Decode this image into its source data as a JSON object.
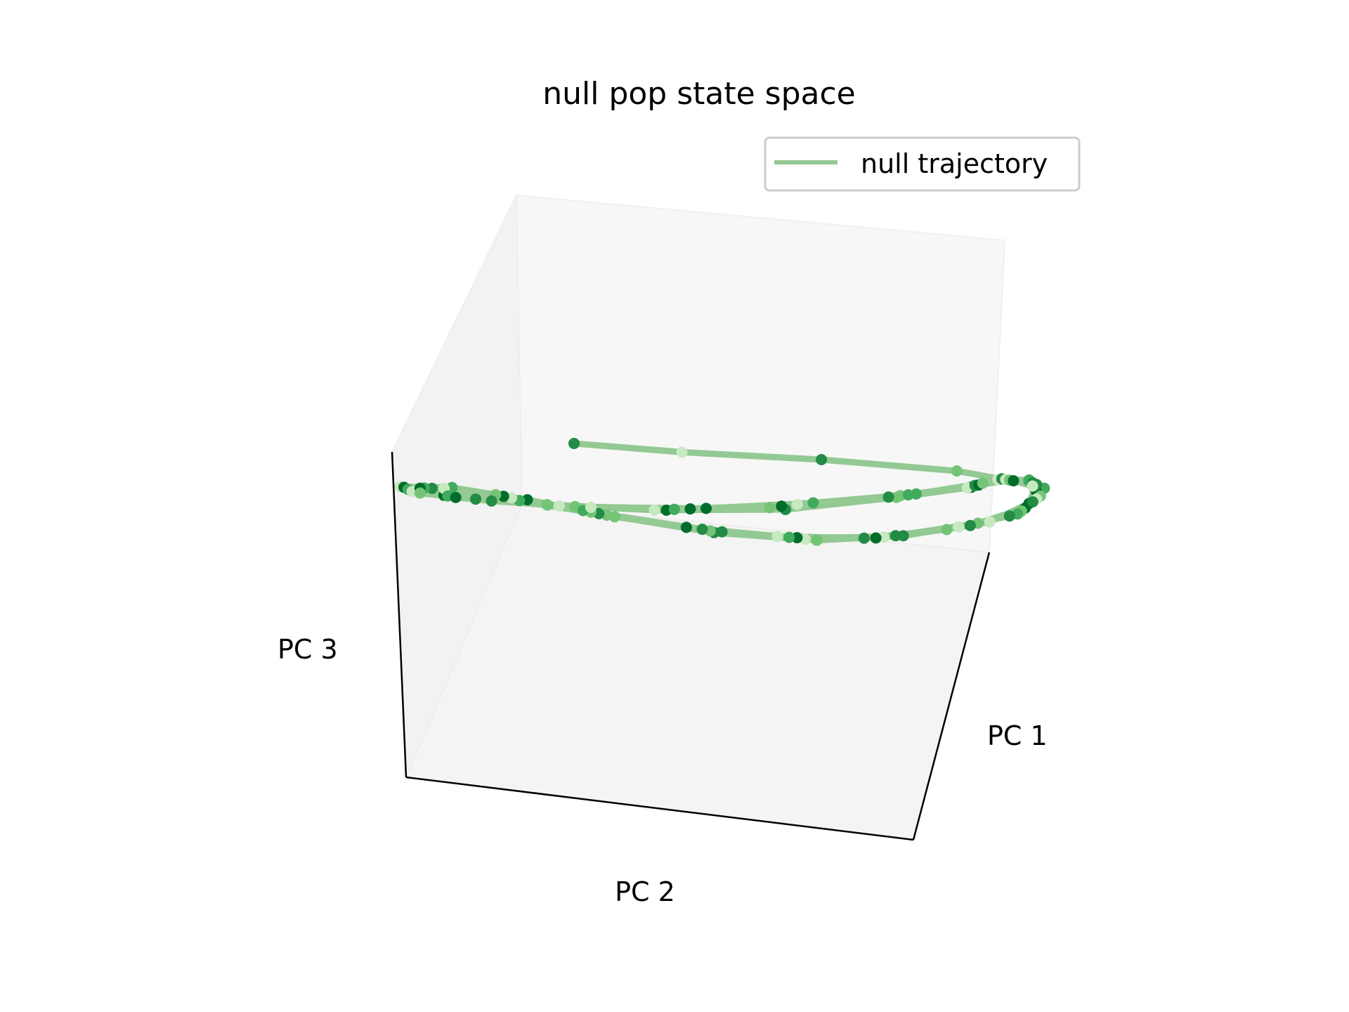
{
  "chart_data": {
    "type": "scatter",
    "projection": "3d",
    "title": "null pop state space",
    "xlabel": "PC 1",
    "ylabel": "PC 2",
    "zlabel": "PC 3",
    "legend": {
      "placement": "top-right",
      "entries": [
        {
          "label": "null trajectory",
          "color": "#93c993"
        }
      ]
    },
    "grid": false,
    "ticks_visible": false,
    "line_color": "#93c993",
    "marker_colormap": "Greens",
    "marker_colors": [
      "#c7e9c0",
      "#74c476",
      "#41ab5d",
      "#238b45",
      "#006d2c"
    ],
    "trajectory": [
      {
        "x": 1.0,
        "y": 5.0,
        "z": 2.0,
        "c": 0.61
      },
      {
        "x": 2.0,
        "y": 3.3,
        "z": 2.1,
        "c": 0.08
      },
      {
        "x": 3.5,
        "y": 1.3,
        "z": 2.3,
        "c": 0.62
      },
      {
        "x": 5.0,
        "y": -0.6,
        "z": 2.1,
        "c": 0.28
      },
      {
        "x": 5.9,
        "y": -1.7,
        "z": 1.3,
        "c": 0.53
      },
      {
        "x": 5.6,
        "y": -1.8,
        "z": 0.0,
        "c": 0.9
      },
      {
        "x": 4.8,
        "y": -1.6,
        "z": -1.3,
        "c": 0.12
      },
      {
        "x": 3.3,
        "y": -0.9,
        "z": -2.3,
        "c": 0.76
      },
      {
        "x": 1.8,
        "y": -0.2,
        "z": -2.5,
        "c": 0.35
      },
      {
        "x": 0.3,
        "y": 0.9,
        "z": -2.0,
        "c": 0.67
      },
      {
        "x": -1.0,
        "y": 2.3,
        "z": -1.0,
        "c": 0.22
      },
      {
        "x": -2.0,
        "y": 3.3,
        "z": 0.0,
        "c": 0.85
      },
      {
        "x": -3.0,
        "y": 4.2,
        "z": 0.8,
        "c": 0.45
      },
      {
        "x": -3.5,
        "y": 5.0,
        "z": 0.5,
        "c": 0.15
      },
      {
        "x": -3.0,
        "y": 4.4,
        "z": 0.0,
        "c": 0.97
      },
      {
        "x": -1.8,
        "y": 3.0,
        "z": -0.3,
        "c": 0.58
      },
      {
        "x": -0.4,
        "y": 1.7,
        "z": -0.4,
        "c": 0.04
      },
      {
        "x": 1.2,
        "y": 0.0,
        "z": 0.2,
        "c": 0.7
      },
      {
        "x": 2.7,
        "y": -1.3,
        "z": 1.5,
        "c": 0.3
      },
      {
        "x": 4.0,
        "y": -1.9,
        "z": 2.2,
        "c": 0.88
      },
      {
        "x": 4.8,
        "y": -1.8,
        "z": 2.4,
        "c": 0.18
      },
      {
        "x": 5.5,
        "y": -1.9,
        "z": 2.1,
        "c": 0.5
      },
      {
        "x": 6.0,
        "y": -1.8,
        "z": 1.1,
        "c": 0.4
      },
      {
        "x": 5.4,
        "y": -1.9,
        "z": -0.2,
        "c": 0.93
      },
      {
        "x": 4.6,
        "y": -1.5,
        "z": -1.4,
        "c": 0.26
      },
      {
        "x": 3.1,
        "y": -0.9,
        "z": -2.2,
        "c": 0.64
      },
      {
        "x": 1.6,
        "y": -0.1,
        "z": -2.4,
        "c": 0.1
      },
      {
        "x": 0.4,
        "y": 0.8,
        "z": -1.9,
        "c": 0.78
      },
      {
        "x": -0.9,
        "y": 2.2,
        "z": -1.1,
        "c": 0.33
      },
      {
        "x": -2.1,
        "y": 3.4,
        "z": -0.1,
        "c": 0.55
      },
      {
        "x": -3.1,
        "y": 4.3,
        "z": 0.7,
        "c": 0.07
      },
      {
        "x": -3.4,
        "y": 5.0,
        "z": 0.4,
        "c": 0.81
      },
      {
        "x": -2.9,
        "y": 4.4,
        "z": -0.1,
        "c": 0.47
      },
      {
        "x": -1.7,
        "y": 3.1,
        "z": -0.4,
        "c": 0.2
      },
      {
        "x": -0.3,
        "y": 1.5,
        "z": -0.3,
        "c": 0.91
      },
      {
        "x": 1.0,
        "y": 0.2,
        "z": 0.3,
        "c": 0.37
      },
      {
        "x": 2.6,
        "y": -1.2,
        "z": 1.5,
        "c": 0.66
      },
      {
        "x": 3.9,
        "y": -1.9,
        "z": 2.2,
        "c": 0.13
      },
      {
        "x": 4.9,
        "y": -1.8,
        "z": 2.4,
        "c": 0.72
      },
      {
        "x": 5.6,
        "y": -1.8,
        "z": 1.9,
        "c": 0.42
      },
      {
        "x": 5.9,
        "y": -1.7,
        "z": 0.8,
        "c": 0.99
      },
      {
        "x": 5.3,
        "y": -1.9,
        "z": -0.4,
        "c": 0.24
      },
      {
        "x": 4.4,
        "y": -1.5,
        "z": -1.5,
        "c": 0.6
      },
      {
        "x": 2.9,
        "y": -0.8,
        "z": -2.3,
        "c": 0.15
      },
      {
        "x": 1.5,
        "y": 0.0,
        "z": -2.3,
        "c": 0.83
      },
      {
        "x": 0.2,
        "y": 0.9,
        "z": -1.8,
        "c": 0.31
      },
      {
        "x": -1.1,
        "y": 2.4,
        "z": -0.9,
        "c": 0.69
      },
      {
        "x": -2.2,
        "y": 3.5,
        "z": 0.1,
        "c": 0.02
      },
      {
        "x": -3.2,
        "y": 4.5,
        "z": 0.6,
        "c": 0.75
      },
      {
        "x": -3.4,
        "y": 4.9,
        "z": 0.3,
        "c": 0.44
      },
      {
        "x": -2.8,
        "y": 4.3,
        "z": -0.2,
        "c": 0.95
      },
      {
        "x": -1.6,
        "y": 2.9,
        "z": -0.4,
        "c": 0.19
      },
      {
        "x": -0.2,
        "y": 1.4,
        "z": -0.2,
        "c": 0.52
      },
      {
        "x": 1.2,
        "y": 0.1,
        "z": 0.4,
        "c": 0.86
      },
      {
        "x": 2.8,
        "y": -1.3,
        "z": 1.6,
        "c": 0.27
      },
      {
        "x": 4.1,
        "y": -1.9,
        "z": 2.3,
        "c": 0.63
      },
      {
        "x": 5.0,
        "y": -1.8,
        "z": 2.3,
        "c": 0.09
      },
      {
        "x": 5.7,
        "y": -1.8,
        "z": 1.7,
        "c": 0.79
      },
      {
        "x": 5.9,
        "y": -1.8,
        "z": 0.5,
        "c": 0.36
      },
      {
        "x": 5.2,
        "y": -1.9,
        "z": -0.6,
        "c": 0.57
      },
      {
        "x": 4.2,
        "y": -1.4,
        "z": -1.6,
        "c": 0.11
      },
      {
        "x": 2.8,
        "y": -0.7,
        "z": -2.4,
        "c": 0.92
      },
      {
        "x": 1.4,
        "y": 0.1,
        "z": -2.3,
        "c": 0.4
      },
      {
        "x": 0.1,
        "y": 1.0,
        "z": -1.7,
        "c": 0.71
      },
      {
        "x": -1.2,
        "y": 2.5,
        "z": -0.8,
        "c": 0.23
      },
      {
        "x": -2.3,
        "y": 3.6,
        "z": 0.2,
        "c": 0.84
      },
      {
        "x": -3.3,
        "y": 4.6,
        "z": 0.6,
        "c": 0.49
      },
      {
        "x": -3.4,
        "y": 4.8,
        "z": 0.2,
        "c": 0.06
      },
      {
        "x": -2.6,
        "y": 4.0,
        "z": -0.2,
        "c": 0.68
      },
      {
        "x": -1.4,
        "y": 2.7,
        "z": -0.4,
        "c": 0.32
      },
      {
        "x": 0.0,
        "y": 1.2,
        "z": -0.1,
        "c": 0.96
      },
      {
        "x": 1.4,
        "y": -0.1,
        "z": 0.6,
        "c": 0.17
      },
      {
        "x": 2.9,
        "y": -1.4,
        "z": 1.7,
        "c": 0.54
      },
      {
        "x": 4.2,
        "y": -1.9,
        "z": 2.3,
        "c": 0.87
      },
      {
        "x": 5.1,
        "y": -1.8,
        "z": 2.2,
        "c": 0.29
      },
      {
        "x": 5.8,
        "y": -1.8,
        "z": 1.5,
        "c": 0.65
      },
      {
        "x": 5.8,
        "y": -1.8,
        "z": 0.3,
        "c": 0.14
      },
      {
        "x": 5.1,
        "y": -1.8,
        "z": -0.8,
        "c": 0.77
      },
      {
        "x": 4.0,
        "y": -1.3,
        "z": -1.8,
        "c": 0.38
      },
      {
        "x": 2.6,
        "y": -0.6,
        "z": -2.4,
        "c": 0.6
      },
      {
        "x": 1.2,
        "y": 0.2,
        "z": -2.2,
        "c": 0.05
      },
      {
        "x": -0.1,
        "y": 1.2,
        "z": -1.6,
        "c": 0.82
      },
      {
        "x": -1.3,
        "y": 2.6,
        "z": -0.7,
        "c": 0.46
      },
      {
        "x": -2.4,
        "y": 3.7,
        "z": 0.3,
        "c": 0.21
      },
      {
        "x": -3.3,
        "y": 4.7,
        "z": 0.5,
        "c": 0.94
      },
      {
        "x": -3.3,
        "y": 4.7,
        "z": 0.1,
        "c": 0.35
      },
      {
        "x": -2.4,
        "y": 3.8,
        "z": -0.3,
        "c": 0.7
      },
      {
        "x": -1.2,
        "y": 2.5,
        "z": -0.4,
        "c": 0.12
      },
      {
        "x": 0.2,
        "y": 1.0,
        "z": 0.0,
        "c": 0.89
      },
      {
        "x": 1.6,
        "y": -0.3,
        "z": 0.8,
        "c": 0.43
      },
      {
        "x": 3.0,
        "y": -1.5,
        "z": 1.8,
        "c": 0.58
      },
      {
        "x": 4.3,
        "y": -1.9,
        "z": 2.4,
        "c": 0.25
      },
      {
        "x": 5.2,
        "y": -1.8,
        "z": 2.1,
        "c": 0.8
      },
      {
        "x": 5.8,
        "y": -1.7,
        "z": 1.3,
        "c": 0.03
      },
      {
        "x": 5.7,
        "y": -1.8,
        "z": 0.1,
        "c": 0.67
      }
    ]
  }
}
